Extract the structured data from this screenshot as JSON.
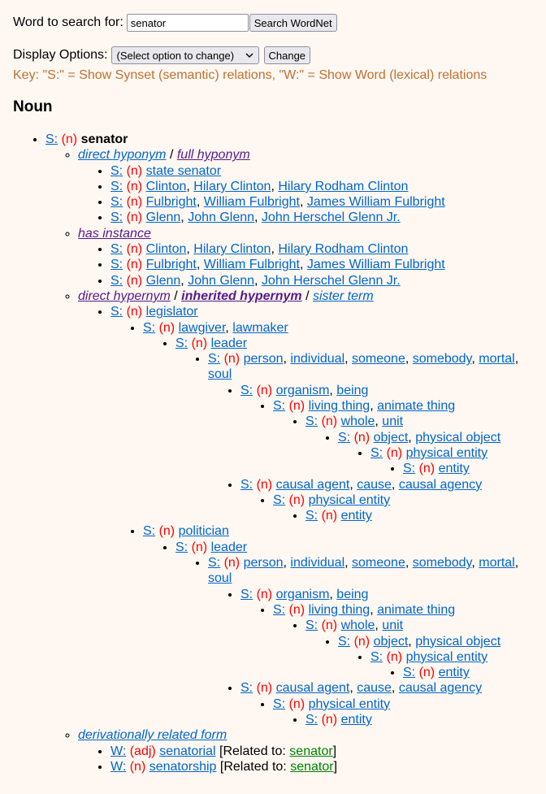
{
  "search": {
    "label": "Word to search for:",
    "value": "senator",
    "button": "Search WordNet"
  },
  "display": {
    "label": "Display Options:",
    "selected": "(Select option to change)",
    "button": "Change"
  },
  "key": "Key: \"S:\" = Show Synset (semantic) relations, \"W:\" = Show Word (lexical) relations",
  "colors": {
    "link": "#0066cc",
    "visited": "#551a8b",
    "pos": "#ff0000",
    "key": "#c0702f",
    "related": "#008000",
    "background": "#fff8f2"
  },
  "heading": "Noun",
  "entry": {
    "marker": "S:",
    "pos": "(n)",
    "head": "senator",
    "relations": [
      {
        "links": [
          {
            "label": "direct hyponym",
            "visited": false
          },
          {
            "label": "full hyponym",
            "visited": true
          }
        ],
        "items": [
          {
            "marker": "S:",
            "pos": "(n)",
            "words": [
              "state senator"
            ]
          },
          {
            "marker": "S:",
            "pos": "(n)",
            "words": [
              "Clinton",
              "Hilary Clinton",
              "Hilary Rodham Clinton"
            ]
          },
          {
            "marker": "S:",
            "pos": "(n)",
            "words": [
              "Fulbright",
              "William Fulbright",
              "James William Fulbright"
            ]
          },
          {
            "marker": "S:",
            "pos": "(n)",
            "words": [
              "Glenn",
              "John Glenn",
              "John Herschel Glenn Jr."
            ]
          }
        ]
      },
      {
        "links": [
          {
            "label": "has instance",
            "visited": true
          }
        ],
        "items": [
          {
            "marker": "S:",
            "pos": "(n)",
            "words": [
              "Clinton",
              "Hilary Clinton",
              "Hilary Rodham Clinton"
            ]
          },
          {
            "marker": "S:",
            "pos": "(n)",
            "words": [
              "Fulbright",
              "William Fulbright",
              "James William Fulbright"
            ]
          },
          {
            "marker": "S:",
            "pos": "(n)",
            "words": [
              "Glenn",
              "John Glenn",
              "John Herschel Glenn Jr."
            ]
          }
        ]
      },
      {
        "links": [
          {
            "label": "direct hypernym",
            "visited": true
          },
          {
            "label": "inherited hypernym",
            "visited": true,
            "bold": true
          },
          {
            "label": "sister term",
            "visited": false
          }
        ],
        "items": [
          {
            "marker": "S:",
            "pos": "(n)",
            "words": [
              "legislator"
            ],
            "children": [
              {
                "marker": "S:",
                "pos": "(n)",
                "words": [
                  "lawgiver",
                  "lawmaker"
                ],
                "children": [
                  {
                    "marker": "S:",
                    "pos": "(n)",
                    "words": [
                      "leader"
                    ],
                    "children": [
                      {
                        "marker": "S:",
                        "pos": "(n)",
                        "words": [
                          "person",
                          "individual",
                          "someone",
                          "somebody",
                          "mortal",
                          "soul"
                        ],
                        "children": [
                          {
                            "marker": "S:",
                            "pos": "(n)",
                            "words": [
                              "organism",
                              "being"
                            ],
                            "children": [
                              {
                                "marker": "S:",
                                "pos": "(n)",
                                "words": [
                                  "living thing",
                                  "animate thing"
                                ],
                                "children": [
                                  {
                                    "marker": "S:",
                                    "pos": "(n)",
                                    "words": [
                                      "whole",
                                      "unit"
                                    ],
                                    "children": [
                                      {
                                        "marker": "S:",
                                        "pos": "(n)",
                                        "words": [
                                          "object",
                                          "physical object"
                                        ],
                                        "children": [
                                          {
                                            "marker": "S:",
                                            "pos": "(n)",
                                            "words": [
                                              "physical entity"
                                            ],
                                            "children": [
                                              {
                                                "marker": "S:",
                                                "pos": "(n)",
                                                "words": [
                                                  "entity"
                                                ]
                                              }
                                            ]
                                          }
                                        ]
                                      }
                                    ]
                                  }
                                ]
                              }
                            ]
                          },
                          {
                            "marker": "S:",
                            "pos": "(n)",
                            "words": [
                              "causal agent",
                              "cause",
                              "causal agency"
                            ],
                            "children": [
                              {
                                "marker": "S:",
                                "pos": "(n)",
                                "words": [
                                  "physical entity"
                                ],
                                "children": [
                                  {
                                    "marker": "S:",
                                    "pos": "(n)",
                                    "words": [
                                      "entity"
                                    ]
                                  }
                                ]
                              }
                            ]
                          }
                        ]
                      }
                    ]
                  }
                ]
              },
              {
                "marker": "S:",
                "pos": "(n)",
                "words": [
                  "politician"
                ],
                "children": [
                  {
                    "marker": "S:",
                    "pos": "(n)",
                    "words": [
                      "leader"
                    ],
                    "children": [
                      {
                        "marker": "S:",
                        "pos": "(n)",
                        "words": [
                          "person",
                          "individual",
                          "someone",
                          "somebody",
                          "mortal",
                          "soul"
                        ],
                        "children": [
                          {
                            "marker": "S:",
                            "pos": "(n)",
                            "words": [
                              "organism",
                              "being"
                            ],
                            "children": [
                              {
                                "marker": "S:",
                                "pos": "(n)",
                                "words": [
                                  "living thing",
                                  "animate thing"
                                ],
                                "children": [
                                  {
                                    "marker": "S:",
                                    "pos": "(n)",
                                    "words": [
                                      "whole",
                                      "unit"
                                    ],
                                    "children": [
                                      {
                                        "marker": "S:",
                                        "pos": "(n)",
                                        "words": [
                                          "object",
                                          "physical object"
                                        ],
                                        "children": [
                                          {
                                            "marker": "S:",
                                            "pos": "(n)",
                                            "words": [
                                              "physical entity"
                                            ],
                                            "children": [
                                              {
                                                "marker": "S:",
                                                "pos": "(n)",
                                                "words": [
                                                  "entity"
                                                ]
                                              }
                                            ]
                                          }
                                        ]
                                      }
                                    ]
                                  }
                                ]
                              }
                            ]
                          },
                          {
                            "marker": "S:",
                            "pos": "(n)",
                            "words": [
                              "causal agent",
                              "cause",
                              "causal agency"
                            ],
                            "children": [
                              {
                                "marker": "S:",
                                "pos": "(n)",
                                "words": [
                                  "physical entity"
                                ],
                                "children": [
                                  {
                                    "marker": "S:",
                                    "pos": "(n)",
                                    "words": [
                                      "entity"
                                    ]
                                  }
                                ]
                              }
                            ]
                          }
                        ]
                      }
                    ]
                  }
                ]
              }
            ]
          }
        ]
      },
      {
        "links": [
          {
            "label": "derivationally related form",
            "visited": false
          }
        ],
        "items": [
          {
            "marker": "W:",
            "pos": "(adj)",
            "words": [
              "senatorial"
            ],
            "related_label": "Related to:",
            "related_word": "senator"
          },
          {
            "marker": "W:",
            "pos": "(n)",
            "words": [
              "senatorship"
            ],
            "related_label": "Related to:",
            "related_word": "senator"
          }
        ]
      }
    ]
  }
}
